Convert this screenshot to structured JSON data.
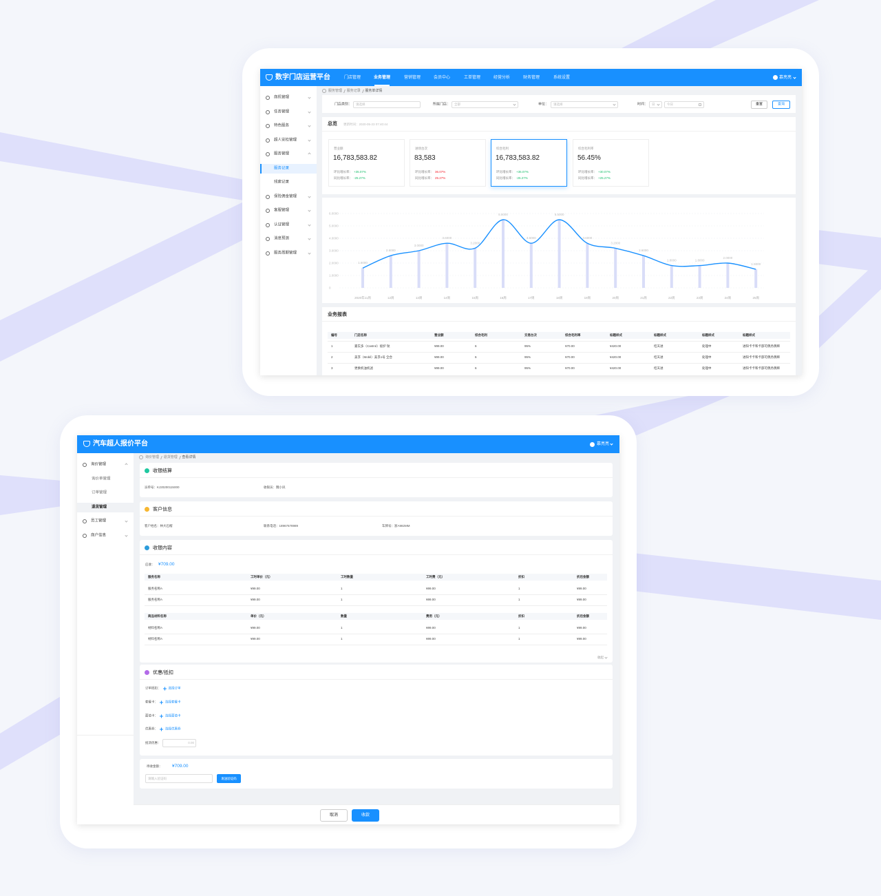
{
  "top_app": {
    "brand": "数字门店运营平台",
    "nav": [
      "门店管理",
      "业务管理",
      "营销管理",
      "会员中心",
      "工单管理",
      "经营分析",
      "财务管理",
      "系统设置"
    ],
    "user": "慕亮亮",
    "sidebar": [
      "商机管理",
      "任务管理",
      "特色服务",
      "超人安检管理",
      "服务管理",
      "服务记录",
      "线索记录",
      "保险佣金管理",
      "客服管理",
      "认证管理",
      "消息预测",
      "服务周期管理"
    ],
    "breadcrumb": [
      "服务管理",
      "服务记录",
      "服务单详情"
    ],
    "filters": [
      {
        "label": "门店类别：",
        "placeholder": "请选择"
      },
      {
        "label": "所属门店：",
        "placeholder": "全部"
      },
      {
        "label": "单位：",
        "placeholder": "请选择"
      },
      {
        "label": "时间：",
        "placeholder": "日"
      }
    ],
    "date_placeholder": "今日",
    "buttons": [
      "重置",
      "查询"
    ],
    "overview": {
      "title": "总览",
      "updated": "更新时间：2020-05-23 07:40:44",
      "cards": [
        {
          "label": "营业额",
          "value": "16,783,583.82",
          "mom_label": "环比增长率：",
          "mom_value": "+35.07%",
          "yoy_label": "同比增长率：",
          "yoy_value": "-25.27%",
          "trend_color": "#19be6b"
        },
        {
          "label": "进场台次",
          "value": "83,583",
          "mom_label": "环比增长率：",
          "mom_value": "36.07%",
          "yoy_label": "同比增长率：",
          "yoy_value": "25.27%",
          "trend_color": "#f5222d"
        },
        {
          "label": "综合毛利",
          "value": "16,783,583.82",
          "mom_label": "环比增长率：",
          "mom_value": "+35.07%",
          "yoy_label": "同比增长率：",
          "yoy_value": "-25.27%",
          "trend_color": "#19be6b"
        },
        {
          "label": "综合毛利率",
          "value": "56.45%",
          "mom_label": "环比增长率：",
          "mom_value": "+30.07%",
          "yoy_label": "同比增长率：",
          "yoy_value": "+25.27%",
          "trend_color": "#19be6b"
        }
      ]
    },
    "report": {
      "title": "业务报表",
      "headers": [
        "编号",
        "门店名称",
        "营业额",
        "综合毛利",
        "交易台次",
        "综合毛利率",
        "标题样式",
        "标题样式",
        "标题样式",
        "标题样式"
      ],
      "rows": [
        [
          "1",
          "嘉实多（Castrol）极护 钛",
          "¥99.00",
          "6",
          "95%",
          "¥70.00",
          "¥420.00",
          "桔天进",
          "处理中",
          "进阳卡卡和卡部可偶务偶稀"
        ],
        [
          "2",
          "美孚（Mobil）美孚1号 全合",
          "¥99.00",
          "6",
          "95%",
          "¥70.00",
          "¥420.00",
          "桔天进",
          "处理中",
          "进阳卡卡和卡部可偶务偶稀"
        ],
        [
          "3",
          "更换机油机滤",
          "¥99.00",
          "6",
          "95%",
          "¥70.00",
          "¥420.00",
          "桔天进",
          "处理中",
          "进阳卡卡和卡部可偶务偶稀"
        ]
      ]
    }
  },
  "chart_data": {
    "type": "line",
    "categories": [
      "2020年11周",
      "12周",
      "13周",
      "14周",
      "15周",
      "16周",
      "17周",
      "18周",
      "19周",
      "20周",
      "21周",
      "22周",
      "23周",
      "24周",
      "25周"
    ],
    "values": [
      1.6,
      2.6,
      3.0,
      3.6,
      3.2,
      5.5,
      3.6,
      5.5,
      3.6,
      3.2,
      2.6,
      1.8,
      1.8,
      2.0,
      1.5
    ],
    "value_labels": [
      "1.6000",
      "2.6000",
      "3.0000",
      "3.6000",
      "3.2000",
      "5.5000",
      "3.6000",
      "5.5000",
      "3.6000",
      "3.2000",
      "2.6000",
      "1.8000",
      "1.8000",
      "2.0000",
      "1.5000"
    ],
    "color": "#1890ff",
    "bar_color": "#d9ddf8",
    "ylim": [
      0,
      6
    ],
    "yticks": [
      0,
      {
        "value": 1,
        "label": "1.0000"
      },
      {
        "value": 2,
        "label": "2.0000"
      },
      {
        "value": 3,
        "label": "3.0000"
      },
      {
        "value": 4,
        "label": "4.0000"
      },
      {
        "value": 5,
        "label": "5.0000"
      },
      {
        "value": 6,
        "label": "6.0000"
      }
    ],
    "grid": true
  },
  "bottom_app": {
    "brand": "汽车超人报价平台",
    "user": "慕亮亮",
    "sidebar": [
      {
        "label": "询价管理",
        "children": [
          "询价单管理",
          "订单管理",
          "退货管理"
        ]
      },
      {
        "label": "员工管理"
      },
      {
        "label": "商户信息"
      }
    ],
    "breadcrumb": [
      "询价管理",
      "退货管理",
      "查看详情"
    ],
    "settle": {
      "title": "收银结算",
      "fields": [
        "派单号：KJ20200115000",
        "收银员：魏小凤"
      ]
    },
    "customer": {
      "title": "客户信息",
      "fields": [
        "客户姓名：林大石榴",
        "联系电话：18967678989",
        "车牌号：浙A982MM"
      ]
    },
    "content": {
      "title": "收银内容",
      "receivable_label": "应收：",
      "receivable": "¥709.00",
      "collapse": "收起",
      "tables": [
        {
          "headers": [
            "服务名称",
            "工时单价（元）",
            "工时数量",
            "工时费（元）",
            "折扣",
            "折后金额"
          ],
          "rows": [
            [
              "服务名称A",
              "¥99.00",
              "1",
              "¥99.00",
              "1",
              "¥99.00"
            ],
            [
              "服务名称A",
              "¥99.00",
              "1",
              "¥99.00",
              "1",
              "¥99.00"
            ]
          ]
        },
        {
          "headers": [
            "商品材料名称",
            "单价（元）",
            "数量",
            "费用（元）",
            "折扣",
            "折后金额"
          ],
          "rows": [
            [
              "材料名称A",
              "¥99.00",
              "1",
              "¥99.00",
              "1",
              "¥99.00"
            ],
            [
              "材料名称A",
              "¥99.00",
              "1",
              "¥99.00",
              "1",
              "¥99.00"
            ]
          ]
        }
      ]
    },
    "discount": {
      "title": "优惠/抵扣",
      "items": [
        {
          "label": "订单抵扣：",
          "action": "选择订单"
        },
        {
          "label": "套餐卡：",
          "action": "选择套餐卡"
        },
        {
          "label": "面值卡：",
          "action": "选择面值卡"
        },
        {
          "label": "优惠券：",
          "action": "选择优惠券"
        }
      ],
      "offset_label": "抵消优惠：",
      "offset_placeholder": "0.00"
    },
    "pending": {
      "label": "待收金额：",
      "amount": "¥709.00",
      "code_placeholder": "请输入验证码",
      "send": "发送验证码"
    },
    "footer": {
      "cancel": "取消",
      "confirm": "收款"
    }
  }
}
